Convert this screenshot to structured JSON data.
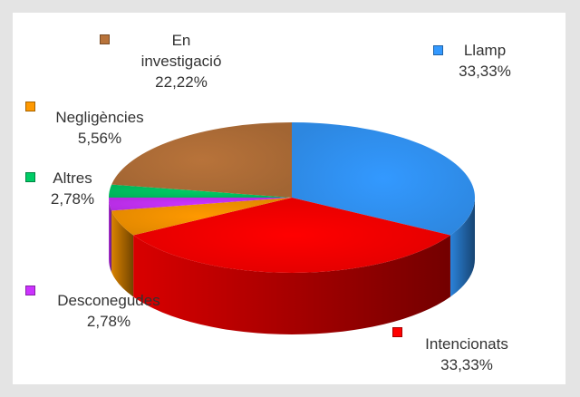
{
  "chart_data": {
    "type": "pie",
    "series": [
      {
        "name": "Llamp",
        "color": "#3399ff",
        "values": [
          33.33
        ],
        "value_labels": [
          "33,33%"
        ]
      },
      {
        "name": "Intencionats",
        "color": "#ff0000",
        "values": [
          33.33
        ],
        "value_labels": [
          "33,33%"
        ]
      },
      {
        "name": "Negligències",
        "color": "#ff9900",
        "values": [
          5.56
        ],
        "value_labels": [
          "5,56%"
        ]
      },
      {
        "name": "Desconegudes",
        "color": "#cc33ff",
        "values": [
          2.78
        ],
        "value_labels": [
          "2,78%"
        ]
      },
      {
        "name": "Altres",
        "color": "#00cc66",
        "values": [
          2.78
        ],
        "value_labels": [
          "2,78%"
        ]
      },
      {
        "name": "En investigació",
        "color": "#b8733a",
        "values": [
          22.22
        ],
        "value_labels": [
          "22,22%"
        ]
      }
    ]
  }
}
